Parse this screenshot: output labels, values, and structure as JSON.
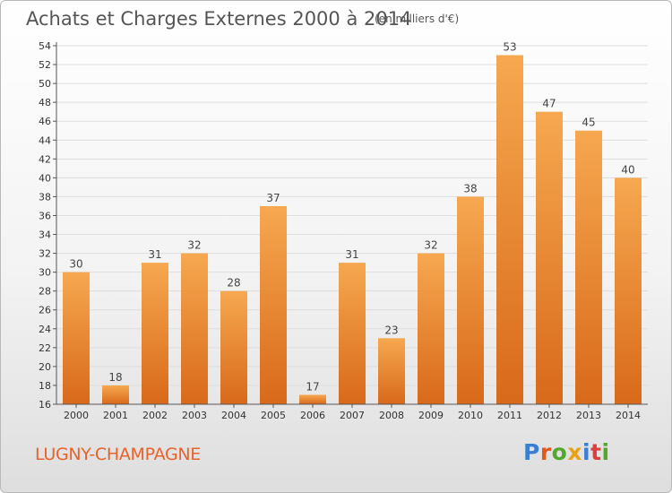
{
  "header": {
    "title": "Achats et Charges Externes 2000 à 2014",
    "unit": "(en milliers d'€)"
  },
  "footer": {
    "place": "LUGNY-CHAMPAGNE",
    "logo": [
      "P",
      "r",
      "o",
      "x",
      "i",
      "t",
      "i"
    ]
  },
  "colors": {
    "bar_top": "#f6a850",
    "bar_bottom": "#d8691a",
    "place_text": "#e8622a",
    "logo": [
      "#3a7fd5",
      "#e05a1c",
      "#52a82c",
      "#e8a21a",
      "#3a7fd5",
      "#d94040",
      "#52a82c"
    ]
  },
  "chart_data": {
    "type": "bar",
    "title": "Achats et Charges Externes 2000 à 2014",
    "subtitle": "(en milliers d'€)",
    "categories": [
      "2000",
      "2001",
      "2002",
      "2003",
      "2004",
      "2005",
      "2006",
      "2007",
      "2008",
      "2009",
      "2010",
      "2011",
      "2012",
      "2013",
      "2014"
    ],
    "values": [
      30,
      18,
      31,
      32,
      28,
      37,
      17,
      31,
      23,
      32,
      38,
      53,
      47,
      45,
      40
    ],
    "xlabel": "",
    "ylabel": "",
    "ylim": [
      16,
      54
    ],
    "yticks": [
      16,
      18,
      20,
      22,
      24,
      26,
      28,
      30,
      32,
      34,
      36,
      38,
      40,
      42,
      44,
      46,
      48,
      50,
      52,
      54
    ],
    "grid": true,
    "legend": "none"
  }
}
